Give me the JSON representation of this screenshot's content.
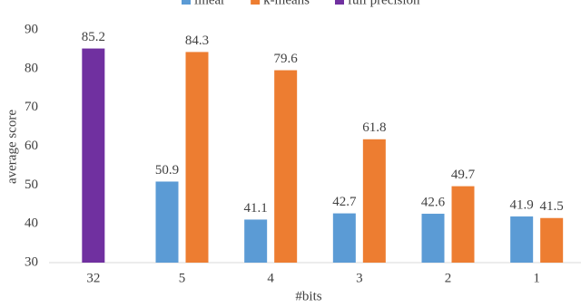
{
  "chart_data": {
    "type": "bar",
    "categories": [
      "32",
      "5",
      "4",
      "3",
      "2",
      "1"
    ],
    "series": [
      {
        "name": "linear",
        "color": "#5b9bd5",
        "values": [
          null,
          50.9,
          41.1,
          42.7,
          42.6,
          41.9
        ]
      },
      {
        "name": "k-means",
        "color": "#ed7d31",
        "values": [
          null,
          84.3,
          79.6,
          61.8,
          49.7,
          41.5
        ]
      },
      {
        "name": "full precision",
        "color": "#7030a0",
        "values": [
          85.2,
          null,
          null,
          null,
          null,
          null
        ]
      }
    ],
    "x_label": "#bits",
    "y_label": "average score",
    "ylim": [
      30,
      90
    ],
    "yticks": [
      30,
      40,
      50,
      60,
      70,
      80,
      90
    ],
    "grid": false,
    "legend": "top"
  }
}
